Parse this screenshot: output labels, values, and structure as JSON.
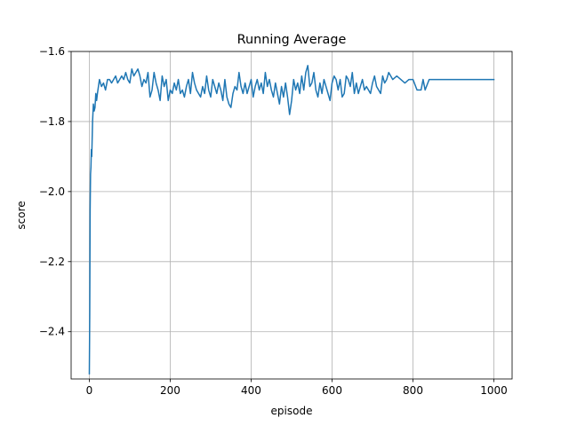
{
  "chart_data": {
    "type": "line",
    "title": "Running Average",
    "xlabel": "episode",
    "ylabel": "score",
    "xlim": [
      -45,
      1045
    ],
    "ylim": [
      -2.535,
      -1.6
    ],
    "xticks": [
      0,
      200,
      400,
      600,
      800,
      1000
    ],
    "xtick_labels": [
      "0",
      "200",
      "400",
      "600",
      "800",
      "1000"
    ],
    "yticks": [
      -2.4,
      -2.2,
      -2.0,
      -1.8,
      -1.6
    ],
    "ytick_labels": [
      "−2.4",
      "−2.2",
      "−2.0",
      "−1.8",
      "−1.6"
    ],
    "grid": true,
    "series": [
      {
        "color": "#1f77b4",
        "x": [
          0,
          1,
          2,
          3,
          4,
          5,
          6,
          8,
          10,
          12,
          14,
          16,
          18,
          20,
          25,
          30,
          35,
          40,
          45,
          50,
          55,
          60,
          65,
          70,
          75,
          80,
          85,
          90,
          95,
          100,
          105,
          110,
          115,
          120,
          125,
          130,
          135,
          140,
          145,
          150,
          155,
          160,
          165,
          170,
          175,
          180,
          185,
          190,
          195,
          200,
          205,
          210,
          215,
          220,
          225,
          230,
          235,
          240,
          245,
          250,
          255,
          260,
          265,
          270,
          275,
          280,
          285,
          290,
          295,
          300,
          305,
          310,
          315,
          320,
          325,
          330,
          335,
          340,
          345,
          350,
          355,
          360,
          365,
          370,
          375,
          380,
          385,
          390,
          395,
          400,
          405,
          410,
          415,
          420,
          425,
          430,
          435,
          440,
          445,
          450,
          455,
          460,
          465,
          470,
          475,
          480,
          485,
          490,
          495,
          500,
          505,
          510,
          515,
          520,
          525,
          530,
          535,
          540,
          545,
          550,
          555,
          560,
          565,
          570,
          575,
          580,
          585,
          590,
          595,
          600,
          605,
          610,
          615,
          620,
          625,
          630,
          635,
          640,
          645,
          650,
          655,
          660,
          665,
          670,
          675,
          680,
          685,
          690,
          695,
          700,
          705,
          710,
          715,
          720,
          725,
          730,
          735,
          740,
          745,
          750,
          760,
          770,
          780,
          790,
          800,
          810,
          820,
          825,
          830,
          840,
          860,
          900,
          950,
          1000
        ],
        "y": [
          -2.52,
          -2.35,
          -2.05,
          -1.95,
          -1.93,
          -1.88,
          -1.9,
          -1.8,
          -1.75,
          -1.77,
          -1.76,
          -1.72,
          -1.74,
          -1.72,
          -1.68,
          -1.7,
          -1.69,
          -1.71,
          -1.68,
          -1.68,
          -1.69,
          -1.68,
          -1.67,
          -1.69,
          -1.68,
          -1.67,
          -1.68,
          -1.66,
          -1.68,
          -1.69,
          -1.65,
          -1.67,
          -1.66,
          -1.65,
          -1.67,
          -1.7,
          -1.68,
          -1.69,
          -1.66,
          -1.73,
          -1.71,
          -1.66,
          -1.69,
          -1.71,
          -1.74,
          -1.67,
          -1.7,
          -1.68,
          -1.74,
          -1.71,
          -1.72,
          -1.69,
          -1.71,
          -1.68,
          -1.72,
          -1.71,
          -1.73,
          -1.7,
          -1.68,
          -1.72,
          -1.66,
          -1.69,
          -1.71,
          -1.72,
          -1.73,
          -1.7,
          -1.72,
          -1.67,
          -1.71,
          -1.73,
          -1.68,
          -1.7,
          -1.72,
          -1.69,
          -1.71,
          -1.74,
          -1.68,
          -1.73,
          -1.75,
          -1.76,
          -1.72,
          -1.7,
          -1.71,
          -1.66,
          -1.7,
          -1.72,
          -1.69,
          -1.72,
          -1.7,
          -1.68,
          -1.73,
          -1.7,
          -1.68,
          -1.71,
          -1.69,
          -1.72,
          -1.66,
          -1.7,
          -1.68,
          -1.71,
          -1.73,
          -1.69,
          -1.72,
          -1.75,
          -1.7,
          -1.73,
          -1.69,
          -1.73,
          -1.78,
          -1.74,
          -1.68,
          -1.71,
          -1.69,
          -1.72,
          -1.67,
          -1.71,
          -1.66,
          -1.64,
          -1.7,
          -1.69,
          -1.66,
          -1.71,
          -1.73,
          -1.69,
          -1.72,
          -1.68,
          -1.7,
          -1.72,
          -1.74,
          -1.69,
          -1.67,
          -1.68,
          -1.71,
          -1.68,
          -1.73,
          -1.72,
          -1.67,
          -1.68,
          -1.7,
          -1.66,
          -1.72,
          -1.69,
          -1.72,
          -1.7,
          -1.68,
          -1.71,
          -1.7,
          -1.71,
          -1.72,
          -1.69,
          -1.67,
          -1.7,
          -1.71,
          -1.72,
          -1.67,
          -1.69,
          -1.68,
          -1.66,
          -1.67,
          -1.68,
          -1.67,
          -1.68,
          -1.69,
          -1.68,
          -1.68,
          -1.71,
          -1.71,
          -1.68,
          -1.71,
          -1.68,
          -1.68,
          -1.68,
          -1.68,
          -1.68
        ]
      }
    ]
  }
}
